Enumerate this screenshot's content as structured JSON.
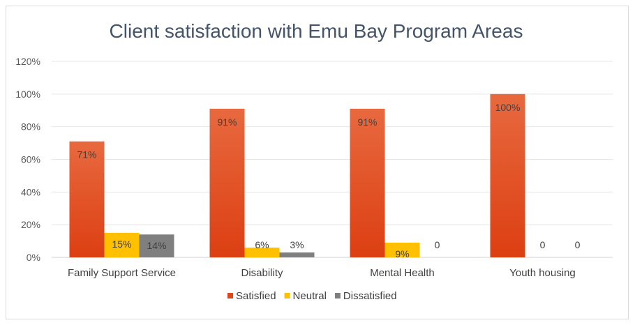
{
  "chart_data": {
    "type": "bar",
    "title": "Client satisfaction with Emu Bay Program Areas",
    "categories": [
      "Family Support Service",
      "Disability",
      "Mental Health",
      "Youth housing"
    ],
    "series": [
      {
        "name": "Satisfied",
        "values": [
          0.71,
          0.91,
          0.91,
          1.0
        ],
        "labels": [
          "71%",
          "91%",
          "91%",
          "100%"
        ],
        "color": "#e0461b"
      },
      {
        "name": "Neutral",
        "values": [
          0.15,
          0.06,
          0.09,
          0
        ],
        "labels": [
          "15%",
          "6%",
          "9%",
          "0"
        ],
        "color": "#ffc000"
      },
      {
        "name": "Dissatisfied",
        "values": [
          0.14,
          0.03,
          0,
          0
        ],
        "labels": [
          "14%",
          "3%",
          "0",
          "0"
        ],
        "color": "#7f7f7f"
      }
    ],
    "yticks": [
      "0%",
      "20%",
      "40%",
      "60%",
      "80%",
      "100%",
      "120%"
    ],
    "ylim": [
      0,
      1.2
    ],
    "grid": true,
    "legend_position": "bottom"
  }
}
